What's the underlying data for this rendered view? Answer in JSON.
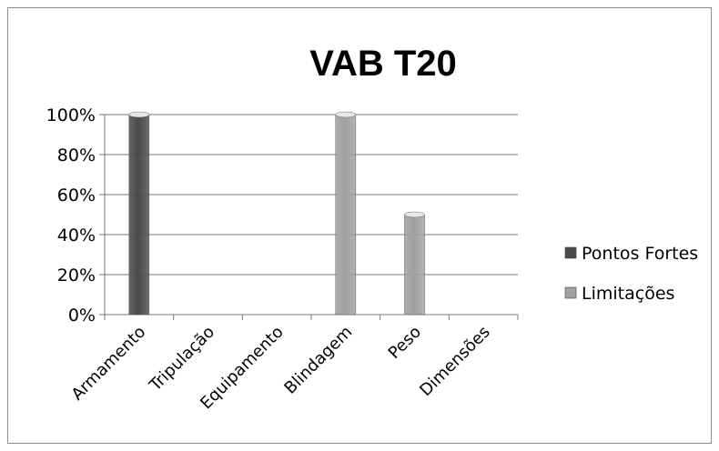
{
  "chart_data": {
    "type": "bar",
    "title": "VAB T20",
    "categories": [
      "Armamento",
      "Tripulação",
      "Equipamento",
      "Blindagem",
      "Peso",
      "Dimensões"
    ],
    "series": [
      {
        "name": "Pontos Fortes",
        "values": [
          100,
          0,
          0,
          0,
          0,
          0
        ],
        "color": "#4a4a4a"
      },
      {
        "name": "Limitações",
        "values": [
          0,
          0,
          0,
          100,
          50,
          0
        ],
        "color": "#a0a0a0"
      }
    ],
    "yticks": [
      "0%",
      "20%",
      "40%",
      "60%",
      "80%",
      "100%"
    ],
    "ylim": [
      0,
      100
    ],
    "grid": true,
    "legend": "right"
  }
}
